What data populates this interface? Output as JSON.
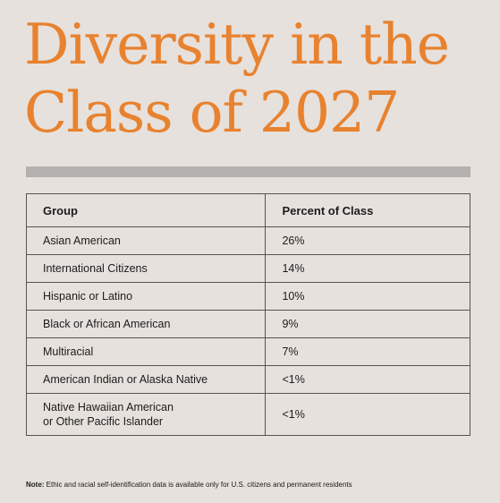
{
  "title": {
    "line1": "Diversity in the",
    "line2": "Class of 2027"
  },
  "colors": {
    "title": "#e8822f",
    "background": "#e6e1dd",
    "divider": "#b3b0ae",
    "border": "#545454"
  },
  "table": {
    "headers": [
      "Group",
      "Percent of Class"
    ],
    "rows": [
      {
        "group": [
          "Asian American"
        ],
        "percent": "26%"
      },
      {
        "group": [
          "International Citizens"
        ],
        "percent": "14%"
      },
      {
        "group": [
          "Hispanic or Latino"
        ],
        "percent": "10%"
      },
      {
        "group": [
          "Black or African American"
        ],
        "percent": "9%"
      },
      {
        "group": [
          "Multiracial"
        ],
        "percent": "7%"
      },
      {
        "group": [
          "American Indian or Alaska Native"
        ],
        "percent": "<1%"
      },
      {
        "group": [
          "Native Hawaiian American",
          "or Other Pacific Islander"
        ],
        "percent": "<1%"
      }
    ]
  },
  "note": {
    "label": "Note:",
    "text": " Ethic and racial self-identification data is available only for U.S. citizens and permanent residents"
  }
}
